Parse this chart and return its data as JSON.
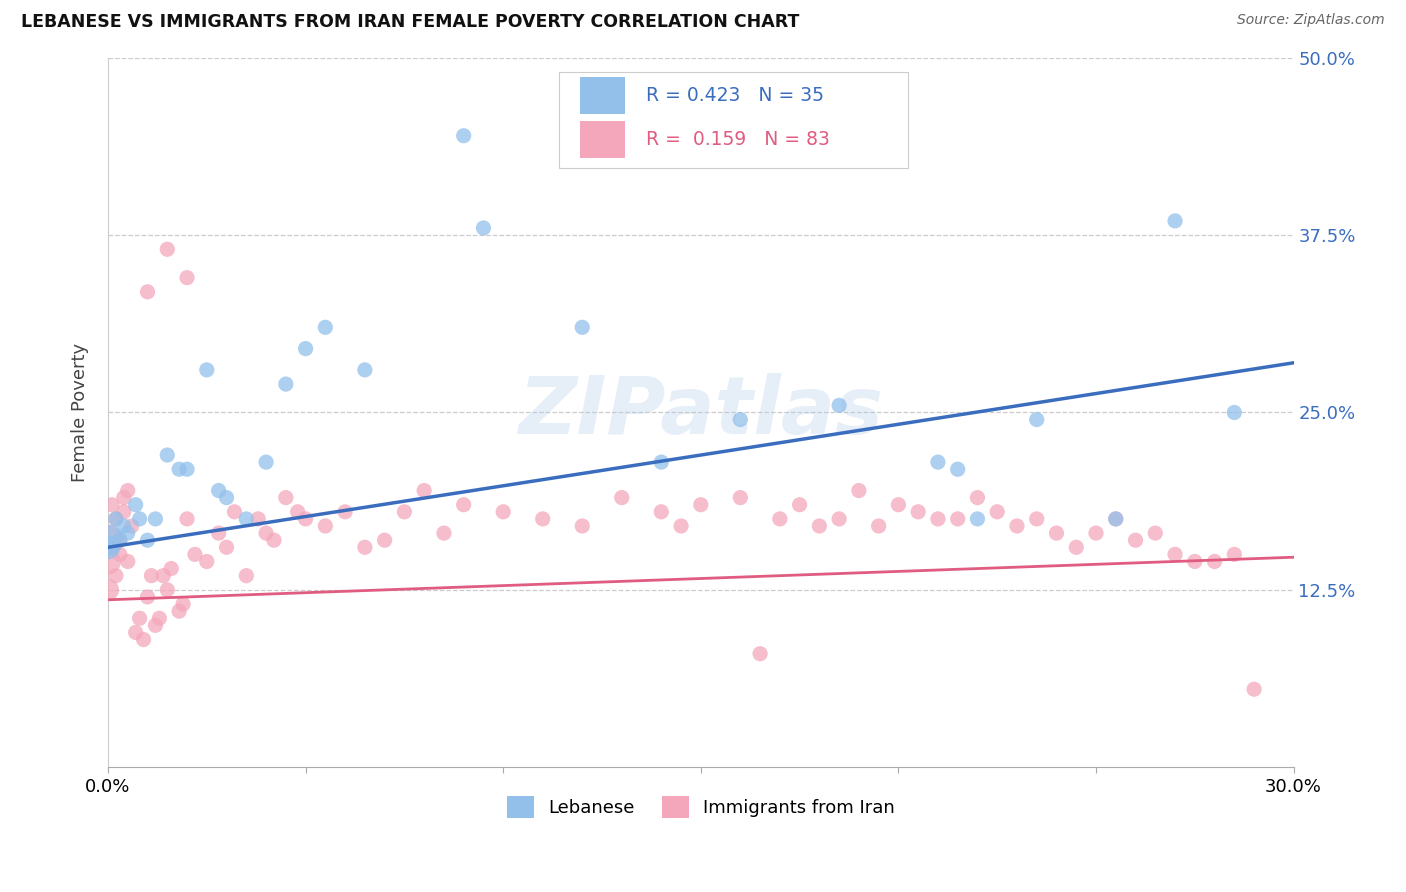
{
  "title": "LEBANESE VS IMMIGRANTS FROM IRAN FEMALE POVERTY CORRELATION CHART",
  "source": "Source: ZipAtlas.com",
  "ylabel": "Female Poverty",
  "xlim": [
    0.0,
    0.3
  ],
  "ylim": [
    0.0,
    0.5
  ],
  "ytick_vals": [
    0.125,
    0.25,
    0.375,
    0.5
  ],
  "ytick_labels": [
    "12.5%",
    "25.0%",
    "37.5%",
    "50.0%"
  ],
  "xtick_vals": [
    0.0,
    0.05,
    0.1,
    0.15,
    0.2,
    0.25,
    0.3
  ],
  "xtick_labels": [
    "0.0%",
    "",
    "",
    "",
    "",
    "",
    "30.0%"
  ],
  "series1_color": "#92c0eb",
  "series2_color": "#f4a7bb",
  "line1_color": "#3b6dbf",
  "line2_color": "#e05c80",
  "watermark": "ZIPatlas",
  "background_color": "#ffffff",
  "leb_line_x": [
    0.0,
    0.3
  ],
  "leb_line_y": [
    0.155,
    0.285
  ],
  "iran_line_x": [
    0.0,
    0.3
  ],
  "iran_line_y": [
    0.118,
    0.148
  ],
  "leb_x": [
    0.0,
    0.0,
    0.002,
    0.003,
    0.004,
    0.005,
    0.007,
    0.008,
    0.01,
    0.012,
    0.015,
    0.018,
    0.02,
    0.025,
    0.028,
    0.03,
    0.035,
    0.04,
    0.045,
    0.05,
    0.055,
    0.065,
    0.09,
    0.095,
    0.12,
    0.14,
    0.16,
    0.185,
    0.21,
    0.215,
    0.22,
    0.235,
    0.255,
    0.27,
    0.285
  ],
  "leb_y": [
    0.16,
    0.155,
    0.175,
    0.16,
    0.17,
    0.165,
    0.185,
    0.175,
    0.16,
    0.175,
    0.22,
    0.21,
    0.21,
    0.28,
    0.195,
    0.19,
    0.175,
    0.215,
    0.27,
    0.295,
    0.31,
    0.28,
    0.445,
    0.38,
    0.31,
    0.215,
    0.245,
    0.255,
    0.215,
    0.21,
    0.175,
    0.245,
    0.175,
    0.385,
    0.25
  ],
  "leb_sizes": [
    500,
    300,
    120,
    120,
    120,
    120,
    120,
    120,
    120,
    120,
    120,
    120,
    120,
    120,
    120,
    120,
    120,
    120,
    120,
    120,
    120,
    120,
    120,
    120,
    120,
    120,
    120,
    120,
    120,
    120,
    120,
    120,
    120,
    120,
    120
  ],
  "iran_x": [
    0.0,
    0.0,
    0.0,
    0.001,
    0.002,
    0.002,
    0.003,
    0.003,
    0.004,
    0.004,
    0.005,
    0.005,
    0.006,
    0.007,
    0.008,
    0.009,
    0.01,
    0.011,
    0.012,
    0.013,
    0.014,
    0.015,
    0.016,
    0.018,
    0.019,
    0.02,
    0.022,
    0.025,
    0.028,
    0.03,
    0.032,
    0.035,
    0.038,
    0.04,
    0.042,
    0.045,
    0.048,
    0.05,
    0.055,
    0.06,
    0.065,
    0.07,
    0.075,
    0.08,
    0.085,
    0.09,
    0.1,
    0.11,
    0.12,
    0.13,
    0.14,
    0.145,
    0.15,
    0.16,
    0.165,
    0.17,
    0.175,
    0.18,
    0.185,
    0.19,
    0.195,
    0.2,
    0.205,
    0.21,
    0.215,
    0.22,
    0.225,
    0.23,
    0.235,
    0.24,
    0.245,
    0.25,
    0.255,
    0.26,
    0.265,
    0.27,
    0.275,
    0.28,
    0.285,
    0.29,
    0.01,
    0.015,
    0.02
  ],
  "iran_y": [
    0.16,
    0.145,
    0.125,
    0.185,
    0.135,
    0.175,
    0.16,
    0.15,
    0.18,
    0.19,
    0.195,
    0.145,
    0.17,
    0.095,
    0.105,
    0.09,
    0.12,
    0.135,
    0.1,
    0.105,
    0.135,
    0.125,
    0.14,
    0.11,
    0.115,
    0.175,
    0.15,
    0.145,
    0.165,
    0.155,
    0.18,
    0.135,
    0.175,
    0.165,
    0.16,
    0.19,
    0.18,
    0.175,
    0.17,
    0.18,
    0.155,
    0.16,
    0.18,
    0.195,
    0.165,
    0.185,
    0.18,
    0.175,
    0.17,
    0.19,
    0.18,
    0.17,
    0.185,
    0.19,
    0.08,
    0.175,
    0.185,
    0.17,
    0.175,
    0.195,
    0.17,
    0.185,
    0.18,
    0.175,
    0.175,
    0.19,
    0.18,
    0.17,
    0.175,
    0.165,
    0.155,
    0.165,
    0.175,
    0.16,
    0.165,
    0.15,
    0.145,
    0.145,
    0.15,
    0.055,
    0.335,
    0.365,
    0.345
  ],
  "iran_sizes": [
    500,
    350,
    250,
    120,
    120,
    120,
    120,
    120,
    120,
    120,
    120,
    120,
    120,
    120,
    120,
    120,
    120,
    120,
    120,
    120,
    120,
    120,
    120,
    120,
    120,
    120,
    120,
    120,
    120,
    120,
    120,
    120,
    120,
    120,
    120,
    120,
    120,
    120,
    120,
    120,
    120,
    120,
    120,
    120,
    120,
    120,
    120,
    120,
    120,
    120,
    120,
    120,
    120,
    120,
    120,
    120,
    120,
    120,
    120,
    120,
    120,
    120,
    120,
    120,
    120,
    120,
    120,
    120,
    120,
    120,
    120,
    120,
    120,
    120,
    120,
    120,
    120,
    120,
    120,
    120,
    120,
    120,
    120
  ]
}
